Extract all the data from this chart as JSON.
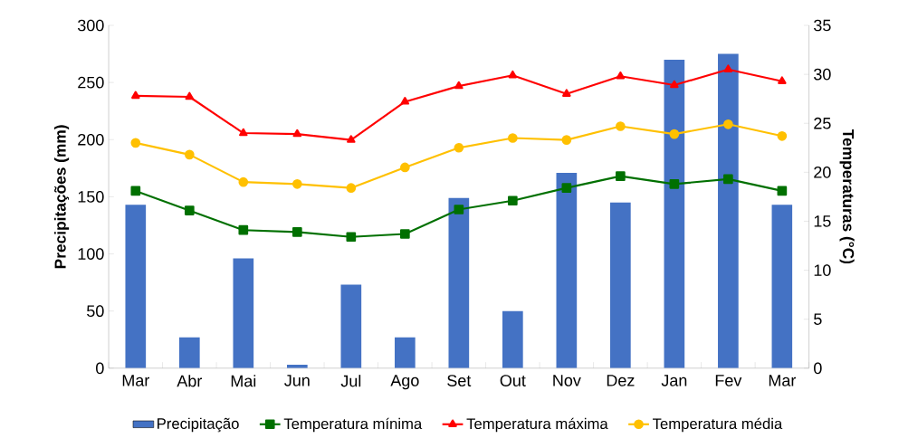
{
  "chart_data": {
    "type": "bar",
    "categories": [
      "Mar",
      "Abr",
      "Mai",
      "Jun",
      "Jul",
      "Ago",
      "Set",
      "Out",
      "Nov",
      "Dez",
      "Jan",
      "Fev",
      "Mar"
    ],
    "series": [
      {
        "name": "Precipitação",
        "color": "#4472c4",
        "values": [
          143,
          27,
          96,
          3,
          73,
          27,
          149,
          50,
          171,
          145,
          270,
          275,
          143
        ]
      },
      {
        "name": "Temperatura mínima",
        "type": "line",
        "axis": "y2",
        "color": "#007000",
        "marker": "square",
        "values": [
          18.1,
          16.1,
          14.1,
          13.9,
          13.4,
          13.7,
          16.2,
          17.1,
          18.4,
          19.6,
          18.8,
          19.3,
          18.1
        ]
      },
      {
        "name": "Temperatura máxima",
        "type": "line",
        "axis": "y2",
        "color": "#ff0000",
        "marker": "triangle",
        "values": [
          27.8,
          27.7,
          24.0,
          23.9,
          23.3,
          27.2,
          28.8,
          29.9,
          28.0,
          29.8,
          28.9,
          30.5,
          29.3
        ]
      },
      {
        "name": "Temperatura média",
        "type": "line",
        "axis": "y2",
        "color": "#ffc000",
        "marker": "circle",
        "values": [
          23.0,
          21.8,
          19.0,
          18.8,
          18.4,
          20.5,
          22.5,
          23.5,
          23.3,
          24.7,
          23.9,
          24.9,
          23.7
        ]
      }
    ],
    "ylabel": "Precipitações (mm)",
    "y2label": "Temperaturas (°C)",
    "ylim": [
      0,
      300
    ],
    "yticks": [
      0,
      50,
      100,
      150,
      200,
      250,
      300
    ],
    "y2lim": [
      0,
      35
    ],
    "y2ticks": [
      0,
      5,
      10,
      15,
      20,
      25,
      30,
      35
    ],
    "grid": false,
    "legend": "bottom"
  }
}
